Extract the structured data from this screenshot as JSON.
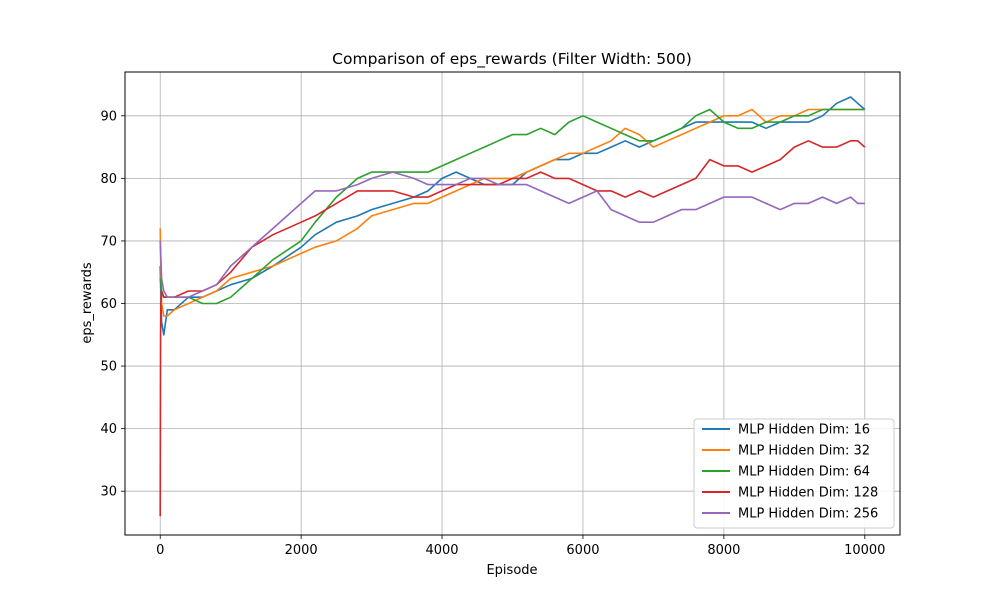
{
  "chart_data": {
    "type": "line",
    "title": "Comparison of eps_rewards (Filter Width: 500)",
    "xlabel": "Episode",
    "ylabel": "eps_rewards",
    "xlim": [
      -500,
      10500
    ],
    "ylim": [
      23,
      97
    ],
    "xticks": [
      0,
      2000,
      4000,
      6000,
      8000,
      10000
    ],
    "xtick_labels": [
      "0",
      "2000",
      "4000",
      "6000",
      "8000",
      "10000"
    ],
    "yticks": [
      30,
      40,
      50,
      60,
      70,
      80,
      90
    ],
    "ytick_labels": [
      "30",
      "40",
      "50",
      "60",
      "70",
      "80",
      "90"
    ],
    "grid": true,
    "legend_position": "lower-right",
    "series": [
      {
        "name": "MLP Hidden Dim: 16",
        "color": "#1f77b4",
        "x": [
          0,
          20,
          50,
          100,
          200,
          400,
          600,
          800,
          1000,
          1300,
          1600,
          2000,
          2200,
          2500,
          2800,
          3000,
          3300,
          3600,
          3800,
          4000,
          4200,
          4400,
          4600,
          4800,
          5000,
          5200,
          5400,
          5600,
          5800,
          6000,
          6200,
          6400,
          6600,
          6800,
          7000,
          7200,
          7400,
          7600,
          7800,
          8000,
          8200,
          8400,
          8600,
          8800,
          9000,
          9200,
          9400,
          9600,
          9800,
          9900,
          10000
        ],
        "y": [
          66,
          57,
          55,
          59,
          59,
          61,
          61,
          62,
          63,
          64,
          66,
          69,
          71,
          73,
          74,
          75,
          76,
          77,
          78,
          80,
          81,
          80,
          79,
          79,
          79,
          81,
          82,
          83,
          83,
          84,
          84,
          85,
          86,
          85,
          86,
          87,
          88,
          89,
          89,
          89,
          89,
          89,
          88,
          89,
          89,
          89,
          90,
          92,
          93,
          92,
          91
        ]
      },
      {
        "name": "MLP Hidden Dim: 32",
        "color": "#ff7f0e",
        "x": [
          0,
          20,
          50,
          100,
          200,
          400,
          600,
          800,
          1000,
          1300,
          1600,
          2000,
          2200,
          2500,
          2800,
          3000,
          3300,
          3600,
          3800,
          4000,
          4200,
          4400,
          4600,
          4800,
          5000,
          5200,
          5400,
          5600,
          5800,
          6000,
          6200,
          6400,
          6600,
          6800,
          7000,
          7200,
          7400,
          7600,
          7800,
          8000,
          8200,
          8400,
          8600,
          8800,
          9000,
          9200,
          9400,
          9600,
          9800,
          9900,
          10000
        ],
        "y": [
          72,
          60,
          58,
          58,
          59,
          60,
          61,
          62,
          64,
          65,
          66,
          68,
          69,
          70,
          72,
          74,
          75,
          76,
          76,
          77,
          78,
          79,
          80,
          80,
          80,
          81,
          82,
          83,
          84,
          84,
          85,
          86,
          88,
          87,
          85,
          86,
          87,
          88,
          89,
          90,
          90,
          91,
          89,
          90,
          90,
          91,
          91,
          91,
          91,
          91,
          91
        ]
      },
      {
        "name": "MLP Hidden Dim: 64",
        "color": "#2ca02c",
        "x": [
          0,
          20,
          50,
          100,
          200,
          400,
          600,
          800,
          1000,
          1300,
          1600,
          2000,
          2200,
          2500,
          2800,
          3000,
          3300,
          3600,
          3800,
          4000,
          4200,
          4400,
          4600,
          4800,
          5000,
          5200,
          5400,
          5600,
          5800,
          6000,
          6200,
          6400,
          6600,
          6800,
          7000,
          7200,
          7400,
          7600,
          7800,
          8000,
          8200,
          8400,
          8600,
          8800,
          9000,
          9200,
          9400,
          9600,
          9800,
          9900,
          10000
        ],
        "y": [
          64,
          62,
          61,
          61,
          61,
          61,
          60,
          60,
          61,
          64,
          67,
          70,
          73,
          77,
          80,
          81,
          81,
          81,
          81,
          82,
          83,
          84,
          85,
          86,
          87,
          87,
          88,
          87,
          89,
          90,
          89,
          88,
          87,
          86,
          86,
          87,
          88,
          90,
          91,
          89,
          88,
          88,
          89,
          89,
          90,
          90,
          91,
          91,
          91,
          91,
          91
        ]
      },
      {
        "name": "MLP Hidden Dim: 128",
        "color": "#d62728",
        "x": [
          0,
          5,
          10,
          20,
          50,
          100,
          200,
          400,
          600,
          800,
          1000,
          1300,
          1600,
          2000,
          2200,
          2500,
          2800,
          3000,
          3300,
          3600,
          3800,
          4000,
          4200,
          4400,
          4600,
          4800,
          5000,
          5200,
          5400,
          5600,
          5800,
          6000,
          6200,
          6400,
          6600,
          6800,
          7000,
          7200,
          7400,
          7600,
          7800,
          8000,
          8200,
          8400,
          8600,
          8800,
          9000,
          9200,
          9400,
          9600,
          9800,
          9900,
          10000
        ],
        "y": [
          26,
          55,
          60,
          62,
          61,
          61,
          61,
          62,
          62,
          63,
          65,
          69,
          71,
          73,
          74,
          76,
          78,
          78,
          78,
          77,
          77,
          78,
          79,
          79,
          79,
          79,
          80,
          80,
          81,
          80,
          80,
          79,
          78,
          78,
          77,
          78,
          77,
          78,
          79,
          80,
          83,
          82,
          82,
          81,
          82,
          83,
          85,
          86,
          85,
          85,
          86,
          86,
          85
        ]
      },
      {
        "name": "MLP Hidden Dim: 256",
        "color": "#9467bd",
        "x": [
          0,
          20,
          50,
          100,
          200,
          400,
          600,
          800,
          1000,
          1300,
          1600,
          2000,
          2200,
          2500,
          2800,
          3000,
          3300,
          3600,
          3800,
          4000,
          4200,
          4400,
          4600,
          4800,
          5000,
          5200,
          5400,
          5600,
          5800,
          6000,
          6200,
          6400,
          6600,
          6800,
          7000,
          7200,
          7400,
          7600,
          7800,
          8000,
          8200,
          8400,
          8600,
          8800,
          9000,
          9200,
          9400,
          9600,
          9800,
          9900,
          10000
        ],
        "y": [
          70,
          64,
          62,
          61,
          61,
          61,
          62,
          63,
          66,
          69,
          72,
          76,
          78,
          78,
          79,
          80,
          81,
          80,
          79,
          79,
          79,
          80,
          80,
          79,
          79,
          79,
          78,
          77,
          76,
          77,
          78,
          75,
          74,
          73,
          73,
          74,
          75,
          75,
          76,
          77,
          77,
          77,
          76,
          75,
          76,
          76,
          77,
          76,
          77,
          76,
          76
        ]
      }
    ]
  }
}
